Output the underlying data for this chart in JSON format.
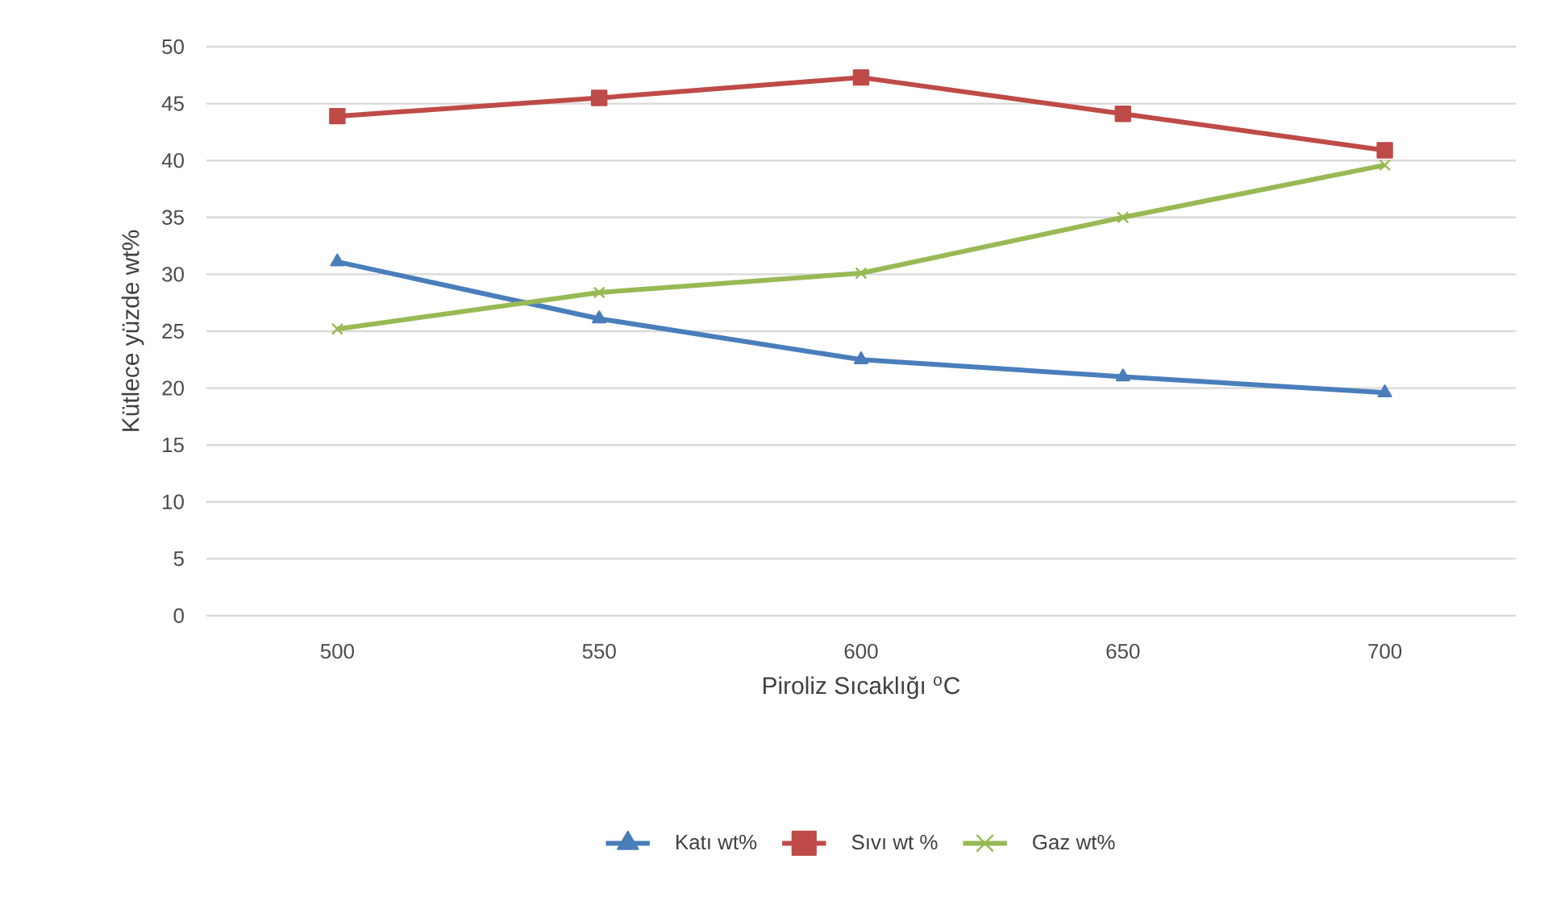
{
  "chart_data": {
    "type": "line",
    "xlabel": "Piroliz Sıcaklığı $^{o}$C",
    "ylabel": "Kütlece yüzde wt%",
    "categories": [
      "500",
      "550",
      "600",
      "650",
      "700"
    ],
    "series": [
      {
        "name": "Katı wt%",
        "color": "#4a7ebb",
        "marker": "triangle",
        "values": [
          31.1,
          26.1,
          22.5,
          21.0,
          19.6
        ]
      },
      {
        "name": "Sıvı wt %",
        "color": "#be4b48",
        "marker": "square",
        "values": [
          43.9,
          45.5,
          47.3,
          44.1,
          40.9
        ]
      },
      {
        "name": "Gaz wt%",
        "color": "#98b954",
        "marker": "cross",
        "values": [
          25.2,
          28.4,
          30.1,
          35.0,
          39.6
        ]
      }
    ],
    "ylim": [
      0,
      50
    ],
    "yticks": [
      0,
      5,
      10,
      15,
      20,
      25,
      30,
      35,
      40,
      45,
      50
    ],
    "grid": "y",
    "legend": "bottom"
  }
}
